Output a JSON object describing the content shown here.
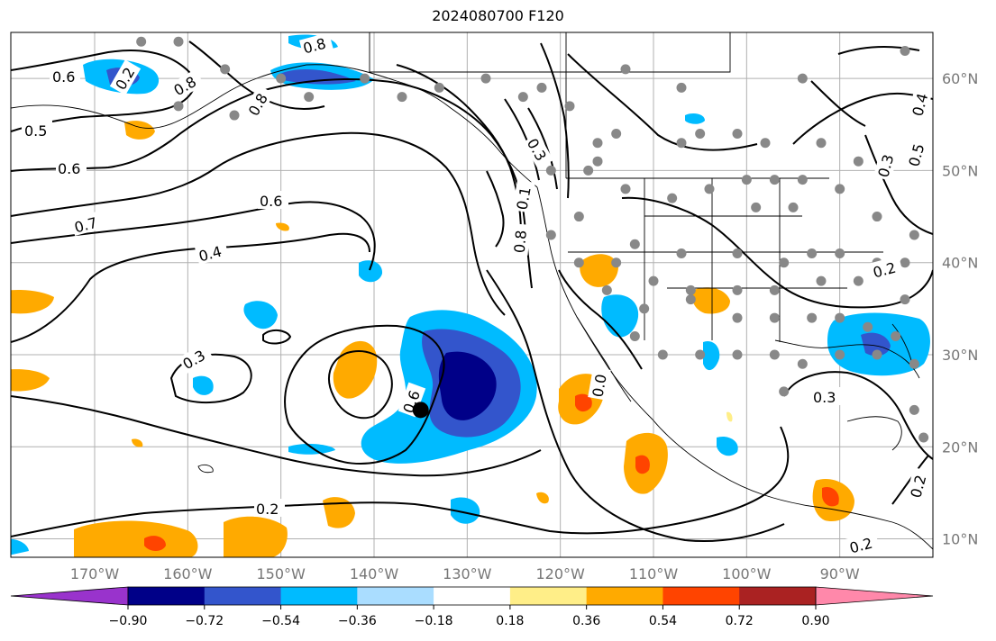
{
  "title": "2024080700 F120",
  "map": {
    "lon_range": [
      -179,
      -80
    ],
    "lat_range": [
      8,
      65
    ],
    "lon_ticks": [
      {
        "value": -170,
        "label": "170°W"
      },
      {
        "value": -160,
        "label": "160°W"
      },
      {
        "value": -150,
        "label": "150°W"
      },
      {
        "value": -140,
        "label": "140°W"
      },
      {
        "value": -130,
        "label": "130°W"
      },
      {
        "value": -120,
        "label": "120°W"
      },
      {
        "value": -110,
        "label": "110°W"
      },
      {
        "value": -100,
        "label": "100°W"
      },
      {
        "value": -90,
        "label": "90°W"
      }
    ],
    "lat_ticks": [
      {
        "value": 10,
        "label": "10°N"
      },
      {
        "value": 20,
        "label": "20°N"
      },
      {
        "value": 30,
        "label": "30°N"
      },
      {
        "value": 40,
        "label": "40°N"
      },
      {
        "value": 50,
        "label": "50°N"
      },
      {
        "value": 60,
        "label": "60°N"
      }
    ],
    "gridlines": true
  },
  "colorbar": {
    "colors": [
      "#9933cc",
      "#000088",
      "#3355cc",
      "#00bbff",
      "#aaddff",
      "#ffffff",
      "#ffee88",
      "#ffaa00",
      "#ff4400",
      "#aa2222",
      "#ff88aa"
    ],
    "tick_labels": [
      "−0.90",
      "−0.72",
      "−0.54",
      "−0.36",
      "−0.18",
      "0.18",
      "0.36",
      "0.54",
      "0.72",
      "0.90"
    ],
    "extend": "both"
  },
  "contour_labels": [
    "0.6",
    "0.2",
    "0.5",
    "0.6",
    "0.8",
    "0.6",
    "0.7",
    "0.4",
    "0.3",
    "0.6",
    "0.2",
    "0.3",
    "0.8",
    "0.1",
    "0.3",
    "0.2",
    "0.3",
    "0.4",
    "0.5",
    "0.2",
    "0.2",
    "0.8",
    "0.8",
    "0.0"
  ],
  "storm_marker": {
    "lon": -135,
    "lat": 24
  },
  "station_points": [
    [
      -165,
      64
    ],
    [
      -161,
      64
    ],
    [
      -156,
      61
    ],
    [
      -150,
      60
    ],
    [
      -141,
      60
    ],
    [
      -133,
      59
    ],
    [
      -128,
      60
    ],
    [
      -122,
      59
    ],
    [
      -113,
      61
    ],
    [
      -107,
      59
    ],
    [
      -94,
      60
    ],
    [
      -83,
      63
    ],
    [
      -124,
      58
    ],
    [
      -119,
      57
    ],
    [
      -114,
      54
    ],
    [
      -116,
      53
    ],
    [
      -107,
      53
    ],
    [
      -105,
      54
    ],
    [
      -101,
      54
    ],
    [
      -98,
      53
    ],
    [
      -92,
      53
    ],
    [
      -88,
      51
    ],
    [
      -100,
      49
    ],
    [
      -97,
      49
    ],
    [
      -94,
      49
    ],
    [
      -121,
      50
    ],
    [
      -117,
      50
    ],
    [
      -116,
      51
    ],
    [
      -113,
      48
    ],
    [
      -108,
      47
    ],
    [
      -104,
      48
    ],
    [
      -99,
      46
    ],
    [
      -95,
      46
    ],
    [
      -90,
      48
    ],
    [
      -86,
      45
    ],
    [
      -82,
      43
    ],
    [
      -118,
      45
    ],
    [
      -121,
      43
    ],
    [
      -112,
      42
    ],
    [
      -107,
      41
    ],
    [
      -101,
      41
    ],
    [
      -96,
      40
    ],
    [
      -93,
      41
    ],
    [
      -90,
      41
    ],
    [
      -86,
      40
    ],
    [
      -83,
      40
    ],
    [
      -118,
      40
    ],
    [
      -114,
      40
    ],
    [
      -110,
      38
    ],
    [
      -106,
      37
    ],
    [
      -101,
      37
    ],
    [
      -97,
      37
    ],
    [
      -92,
      38
    ],
    [
      -88,
      38
    ],
    [
      -83,
      36
    ],
    [
      -115,
      37
    ],
    [
      -111,
      35
    ],
    [
      -106,
      36
    ],
    [
      -101,
      34
    ],
    [
      -97,
      34
    ],
    [
      -93,
      34
    ],
    [
      -90,
      34
    ],
    [
      -87,
      33
    ],
    [
      -84,
      32
    ],
    [
      -112,
      32
    ],
    [
      -109,
      30
    ],
    [
      -105,
      30
    ],
    [
      -101,
      30
    ],
    [
      -97,
      30
    ],
    [
      -94,
      29
    ],
    [
      -90,
      30
    ],
    [
      -86,
      30
    ],
    [
      -82,
      29
    ],
    [
      -96,
      26
    ],
    [
      -82,
      24
    ],
    [
      -81,
      21
    ],
    [
      -161,
      57
    ],
    [
      -155,
      56
    ],
    [
      -147,
      58
    ],
    [
      -137,
      58
    ]
  ]
}
